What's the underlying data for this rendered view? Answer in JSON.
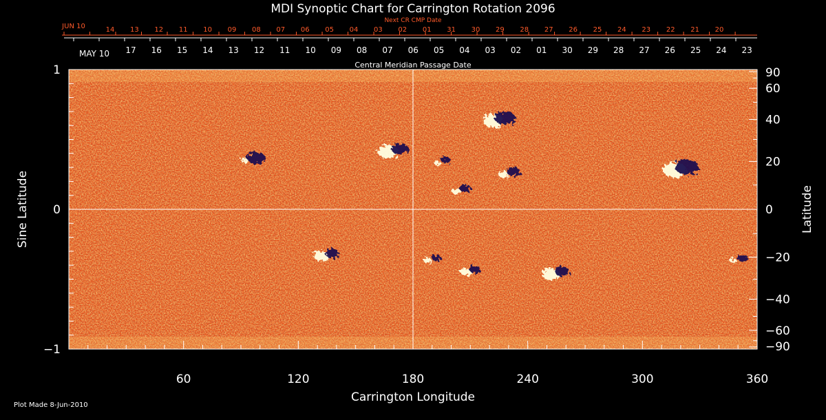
{
  "chart_data": {
    "type": "heatmap",
    "title": "MDI Synoptic Chart for Carrington Rotation 2096",
    "top_axis_label": "Next CR CMP Date",
    "top_axis_start": "JUN 10",
    "top_axis_ticks": [
      "14",
      "13",
      "12",
      "11",
      "10",
      "09",
      "08",
      "07",
      "06",
      "05",
      "04",
      "03",
      "02",
      "01",
      "31",
      "30",
      "29",
      "28",
      "27",
      "26",
      "25",
      "24",
      "23",
      "22",
      "21",
      "20"
    ],
    "middle_axis_start": "MAY 10",
    "middle_axis_ticks": [
      "17",
      "16",
      "15",
      "14",
      "13",
      "12",
      "11",
      "10",
      "09",
      "08",
      "07",
      "06",
      "05",
      "04",
      "03",
      "02",
      "01",
      "30",
      "29",
      "28",
      "27",
      "26",
      "25",
      "24",
      "23"
    ],
    "middle_axis_label": "Central Meridian Passage Date",
    "xlabel": "Carrington Longitude",
    "xlim": [
      0,
      360
    ],
    "xticks": [
      60,
      120,
      180,
      240,
      300,
      360
    ],
    "xtick_labels": [
      "60",
      "120",
      "180",
      "240",
      "300",
      "360"
    ],
    "ylabel_left": "Sine Latitude",
    "ylim": [
      -1,
      1
    ],
    "left_ticks": [
      1,
      0,
      -1
    ],
    "left_tick_labels": [
      "1",
      "0",
      "−1"
    ],
    "ylabel_right": "Latitude",
    "right_ticks": [
      90,
      60,
      40,
      20,
      0,
      -20,
      -40,
      -60,
      -90
    ],
    "right_tick_labels": [
      "90",
      "60",
      "40",
      "20",
      "0",
      "−20",
      "−40",
      "−60",
      "−90"
    ],
    "grid_lines": {
      "longitude": [
        180
      ],
      "sine_latitude": [
        0
      ]
    },
    "colormap": {
      "background": "#e8541c",
      "positive": "#ffffe0",
      "negative": "#1a1050"
    },
    "active_regions": [
      {
        "lon": 95,
        "lat": 21,
        "pos_flux": 0.2,
        "neg_flux": 0.8
      },
      {
        "lon": 170,
        "lat": 25,
        "pos_flux": 0.9,
        "neg_flux": 0.7
      },
      {
        "lon": 225,
        "lat": 40,
        "pos_flux": 0.9,
        "neg_flux": 0.9
      },
      {
        "lon": 230,
        "lat": 15,
        "pos_flux": 0.4,
        "neg_flux": 0.6
      },
      {
        "lon": 205,
        "lat": 8,
        "pos_flux": 0.3,
        "neg_flux": 0.5
      },
      {
        "lon": 195,
        "lat": 20,
        "pos_flux": 0.2,
        "neg_flux": 0.4
      },
      {
        "lon": 320,
        "lat": 17,
        "pos_flux": 1.0,
        "neg_flux": 1.0
      },
      {
        "lon": 135,
        "lat": -19,
        "pos_flux": 0.7,
        "neg_flux": 0.6
      },
      {
        "lon": 210,
        "lat": -26,
        "pos_flux": 0.5,
        "neg_flux": 0.5
      },
      {
        "lon": 190,
        "lat": -21,
        "pos_flux": 0.3,
        "neg_flux": 0.4
      },
      {
        "lon": 255,
        "lat": -27,
        "pos_flux": 0.8,
        "neg_flux": 0.6
      },
      {
        "lon": 350,
        "lat": -21,
        "pos_flux": 0.2,
        "neg_flux": 0.5
      }
    ]
  },
  "footer": {
    "plot_made": "Plot Made  8-Jun-2010"
  },
  "colors": {
    "title": "#ffffff",
    "top_axis": "#ff5a2a",
    "axis": "#ffffff"
  }
}
